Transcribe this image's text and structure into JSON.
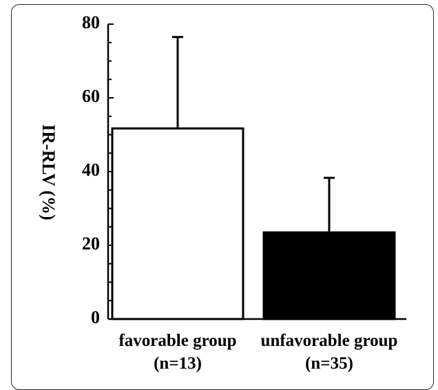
{
  "chart_data": {
    "type": "bar",
    "title": "",
    "ylabel": "IR-RLV (%)",
    "xlabel": "",
    "ylim": [
      0,
      80
    ],
    "y_ticks": [
      "0",
      "20",
      "40",
      "60",
      "80"
    ],
    "categories": [
      {
        "name": "favorable group",
        "n": "(n=13)"
      },
      {
        "name": "unfavorable group",
        "n": "(n=35)"
      }
    ],
    "values": [
      51.7,
      23.5
    ],
    "error_upper": [
      76.5,
      38.3
    ],
    "colors": [
      "#ffffff",
      "#000000"
    ],
    "grid": false,
    "legend": "none"
  }
}
